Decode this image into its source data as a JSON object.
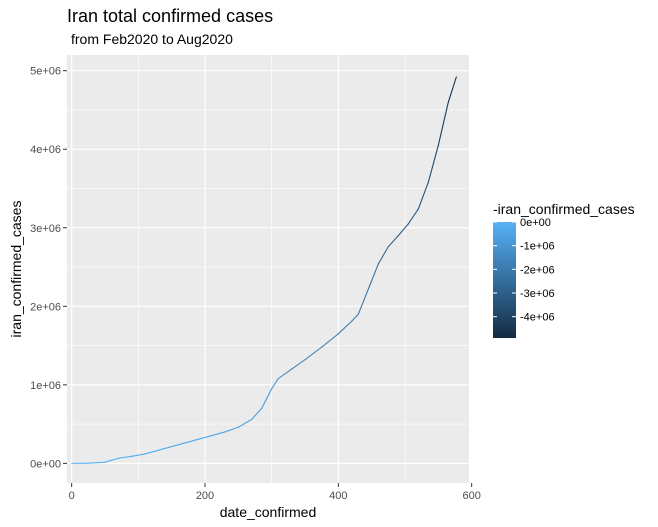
{
  "chart_data": {
    "type": "line",
    "title": "Iran total confirmed cases",
    "subtitle": "from Feb2020 to Aug2020",
    "xlabel": "date_confirmed",
    "ylabel": "iran_confirmed_cases",
    "xlim": [
      -7,
      596
    ],
    "ylim": [
      -250000,
      5200000
    ],
    "x_ticks": [
      0,
      200,
      400,
      600
    ],
    "x_tick_labels": [
      "0",
      "200",
      "400",
      "600"
    ],
    "y_ticks": [
      0,
      1000000,
      2000000,
      3000000,
      4000000,
      5000000
    ],
    "y_tick_labels": [
      "0e+00",
      "1e+06",
      "2e+06",
      "3e+06",
      "4e+06",
      "5e+06"
    ],
    "grid": true,
    "legend": {
      "title": "-iran_confirmed_cases",
      "placement": "right",
      "labels": [
        "0e+00",
        "-1e+06",
        "-2e+06",
        "-3e+06",
        "-4e+06"
      ],
      "values": [
        0,
        -1000000,
        -2000000,
        -3000000,
        -4000000
      ],
      "min": -4900000,
      "max": 0,
      "color_high": "#56B1F7",
      "color_low": "#132B43"
    },
    "colors": {
      "panel_bg": "#EBEBEB",
      "grid": "#FFFFFF"
    },
    "series": [
      {
        "points": [
          [
            0,
            0
          ],
          [
            25,
            2000
          ],
          [
            50,
            15000
          ],
          [
            70,
            65000
          ],
          [
            90,
            90000
          ],
          [
            110,
            120000
          ],
          [
            140,
            190000
          ],
          [
            170,
            260000
          ],
          [
            200,
            330000
          ],
          [
            230,
            400000
          ],
          [
            250,
            460000
          ],
          [
            270,
            560000
          ],
          [
            285,
            700000
          ],
          [
            300,
            950000
          ],
          [
            310,
            1080000
          ],
          [
            330,
            1200000
          ],
          [
            350,
            1320000
          ],
          [
            375,
            1480000
          ],
          [
            400,
            1650000
          ],
          [
            420,
            1810000
          ],
          [
            430,
            1900000
          ],
          [
            445,
            2220000
          ],
          [
            460,
            2540000
          ],
          [
            475,
            2760000
          ],
          [
            490,
            2900000
          ],
          [
            505,
            3050000
          ],
          [
            520,
            3240000
          ],
          [
            535,
            3580000
          ],
          [
            550,
            4050000
          ],
          [
            565,
            4600000
          ],
          [
            577,
            4920000
          ]
        ]
      }
    ]
  }
}
